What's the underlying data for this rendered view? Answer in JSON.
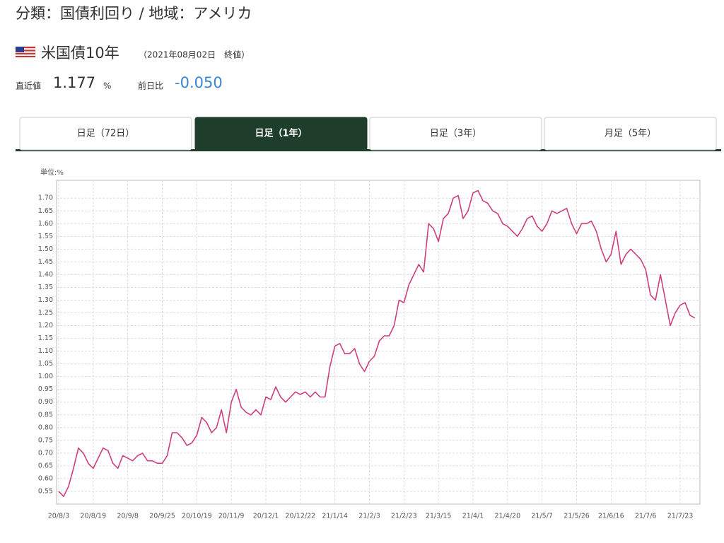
{
  "header": {
    "title": "分類：国債利回り / 地域：アメリカ"
  },
  "quote": {
    "name": "米国債10年",
    "date_note": "（2021年08月02日　終値）",
    "latest_label": "直近値",
    "latest_value": "1.177",
    "latest_unit": "%",
    "change_label": "前日比",
    "change_value": "-0.050"
  },
  "tabs": [
    "日足（72日）",
    "日足（1年）",
    "日足（3年）",
    "月足（5年）"
  ],
  "chart_data": {
    "type": "line",
    "y_label": "単位:%",
    "color": "#cc3f7f",
    "grid": true,
    "categories": [
      "20/8/3",
      null,
      null,
      null,
      null,
      null,
      null,
      "20/8/19",
      null,
      null,
      null,
      null,
      null,
      null,
      "20/9/8",
      null,
      null,
      null,
      null,
      null,
      null,
      "20/9/25",
      null,
      null,
      null,
      null,
      null,
      null,
      "20/10/19",
      null,
      null,
      null,
      null,
      null,
      null,
      "20/11/9",
      null,
      null,
      null,
      null,
      null,
      null,
      "20/12/1",
      null,
      null,
      null,
      null,
      null,
      null,
      "20/12/22",
      null,
      null,
      null,
      null,
      null,
      null,
      "21/1/14",
      null,
      null,
      null,
      null,
      null,
      null,
      "21/2/3",
      null,
      null,
      null,
      null,
      null,
      null,
      "21/2/23",
      null,
      null,
      null,
      null,
      null,
      null,
      "21/3/15",
      null,
      null,
      null,
      null,
      null,
      null,
      "21/4/1",
      null,
      null,
      null,
      null,
      null,
      null,
      "21/4/20",
      null,
      null,
      null,
      null,
      null,
      null,
      "21/5/7",
      null,
      null,
      null,
      null,
      null,
      null,
      "21/5/26",
      null,
      null,
      null,
      null,
      null,
      null,
      "21/6/16",
      null,
      null,
      null,
      null,
      null,
      null,
      "21/7/6",
      null,
      null,
      null,
      null,
      null,
      null,
      "21/7/23",
      null,
      null,
      null
    ],
    "values": [
      0.55,
      0.53,
      0.57,
      0.64,
      0.72,
      0.7,
      0.66,
      0.64,
      0.68,
      0.72,
      0.71,
      0.66,
      0.64,
      0.69,
      0.68,
      0.67,
      0.69,
      0.7,
      0.67,
      0.67,
      0.66,
      0.66,
      0.69,
      0.78,
      0.78,
      0.76,
      0.73,
      0.74,
      0.77,
      0.84,
      0.82,
      0.78,
      0.8,
      0.87,
      0.78,
      0.9,
      0.95,
      0.88,
      0.86,
      0.85,
      0.87,
      0.85,
      0.92,
      0.91,
      0.96,
      0.92,
      0.9,
      0.92,
      0.94,
      0.93,
      0.94,
      0.92,
      0.94,
      0.92,
      0.92,
      1.04,
      1.12,
      1.13,
      1.09,
      1.09,
      1.11,
      1.05,
      1.02,
      1.06,
      1.08,
      1.14,
      1.16,
      1.16,
      1.2,
      1.3,
      1.29,
      1.36,
      1.4,
      1.44,
      1.41,
      1.6,
      1.58,
      1.53,
      1.62,
      1.64,
      1.7,
      1.71,
      1.62,
      1.65,
      1.72,
      1.73,
      1.69,
      1.68,
      1.65,
      1.64,
      1.6,
      1.59,
      1.57,
      1.55,
      1.58,
      1.62,
      1.63,
      1.59,
      1.57,
      1.6,
      1.65,
      1.64,
      1.65,
      1.66,
      1.6,
      1.56,
      1.6,
      1.6,
      1.61,
      1.57,
      1.5,
      1.45,
      1.48,
      1.57,
      1.44,
      1.48,
      1.5,
      1.48,
      1.46,
      1.42,
      1.32,
      1.3,
      1.4,
      1.3,
      1.2,
      1.25,
      1.28,
      1.29,
      1.24,
      1.23
    ],
    "ylim": [
      0.5,
      1.77
    ],
    "yticks": [
      {
        "value": 0.55,
        "label": "0.55"
      },
      {
        "value": 0.6,
        "label": "0.60"
      },
      {
        "value": 0.65,
        "label": "0.65"
      },
      {
        "value": 0.7,
        "label": "0.70"
      },
      {
        "value": 0.75,
        "label": "0.75"
      },
      {
        "value": 0.8,
        "label": "0.80"
      },
      {
        "value": 0.85,
        "label": "0.85"
      },
      {
        "value": 0.9,
        "label": "0.90"
      },
      {
        "value": 0.95,
        "label": "0.95"
      },
      {
        "value": 1.0,
        "label": "1.00"
      },
      {
        "value": 1.05,
        "label": "1.05"
      },
      {
        "value": 1.1,
        "label": "1.10"
      },
      {
        "value": 1.15,
        "label": "1.15"
      },
      {
        "value": 1.2,
        "label": "1.20"
      },
      {
        "value": 1.25,
        "label": "1.25"
      },
      {
        "value": 1.3,
        "label": "1.30"
      },
      {
        "value": 1.35,
        "label": "1.35"
      },
      {
        "value": 1.4,
        "label": "1.40"
      },
      {
        "value": 1.45,
        "label": "1.45"
      },
      {
        "value": 1.5,
        "label": "1.50"
      },
      {
        "value": 1.55,
        "label": "1.55"
      },
      {
        "value": 1.6,
        "label": "1.60"
      },
      {
        "value": 1.65,
        "label": "1.65"
      },
      {
        "value": 1.7,
        "label": "1.70"
      }
    ]
  }
}
